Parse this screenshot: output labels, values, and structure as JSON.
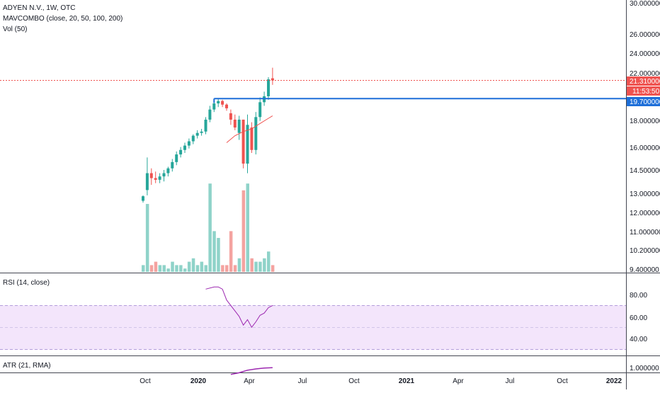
{
  "legend": {
    "symbol": "ADYEN N.V., 1W, OTC",
    "study_ma": "MAVCOMBO (close, 20, 50, 100, 200)",
    "study_vol": "Vol (50)",
    "study_rsi": "RSI (14, close)",
    "study_atr": "ATR (21, RMA)"
  },
  "price_axis": {
    "ticks": [
      "30.000000",
      "26.000000",
      "24.000000",
      "22.000000",
      "18.000000",
      "16.000000",
      "14.500000",
      "13.000000",
      "12.000000",
      "11.000000",
      "10.200000",
      "9.400000"
    ],
    "last_price": "21.310000",
    "countdown": "11:53:50",
    "level": "19.700000"
  },
  "rsi_axis": {
    "ticks": [
      "80.00",
      "60.00",
      "40.00"
    ]
  },
  "atr_axis": {
    "ticks": [
      "1.000000"
    ]
  },
  "time_axis": {
    "labels": [
      "Oct",
      "2020",
      "Apr",
      "Jul",
      "Oct",
      "2021",
      "Apr",
      "Jul",
      "Oct",
      "2022"
    ]
  },
  "colors": {
    "up": "#26a69a",
    "down": "#ef5350",
    "vol_up": "#8fd3c9",
    "vol_down": "#f4a3a0",
    "level_line": "#1e6fd9",
    "last_price_tag": "#ef5350",
    "rsi_line": "#9c27b0",
    "rsi_band": "#f3e5fb",
    "ma_line": "#ef5350"
  },
  "chart_data": {
    "type": "candlestick",
    "title": "ADYEN N.V., 1W, OTC",
    "y_scale": "log",
    "candles": [
      {
        "o": 12.7,
        "h": 13.0,
        "l": 12.6,
        "c": 12.95,
        "v": 0.1
      },
      {
        "o": 13.3,
        "h": 15.3,
        "l": 13.0,
        "c": 14.3,
        "v": 1.0
      },
      {
        "o": 14.3,
        "h": 14.6,
        "l": 13.6,
        "c": 14.0,
        "v": 0.1
      },
      {
        "o": 14.0,
        "h": 14.4,
        "l": 13.7,
        "c": 13.9,
        "v": 0.15
      },
      {
        "o": 13.9,
        "h": 14.3,
        "l": 13.7,
        "c": 14.1,
        "v": 0.1
      },
      {
        "o": 14.1,
        "h": 14.5,
        "l": 13.8,
        "c": 14.3,
        "v": 0.1
      },
      {
        "o": 14.3,
        "h": 14.7,
        "l": 14.1,
        "c": 14.6,
        "v": 0.05
      },
      {
        "o": 14.6,
        "h": 15.2,
        "l": 14.4,
        "c": 15.0,
        "v": 0.15
      },
      {
        "o": 15.0,
        "h": 15.7,
        "l": 14.8,
        "c": 15.5,
        "v": 0.1
      },
      {
        "o": 15.5,
        "h": 16.0,
        "l": 15.3,
        "c": 15.8,
        "v": 0.1
      },
      {
        "o": 15.8,
        "h": 16.3,
        "l": 15.6,
        "c": 16.1,
        "v": 0.05
      },
      {
        "o": 16.1,
        "h": 16.6,
        "l": 15.9,
        "c": 16.4,
        "v": 0.15
      },
      {
        "o": 16.4,
        "h": 16.9,
        "l": 16.2,
        "c": 16.8,
        "v": 0.2
      },
      {
        "o": 16.8,
        "h": 17.2,
        "l": 16.6,
        "c": 17.0,
        "v": 0.1
      },
      {
        "o": 17.0,
        "h": 17.3,
        "l": 16.8,
        "c": 17.1,
        "v": 0.15
      },
      {
        "o": 17.1,
        "h": 18.2,
        "l": 16.9,
        "c": 18.0,
        "v": 0.1
      },
      {
        "o": 18.0,
        "h": 19.1,
        "l": 17.8,
        "c": 18.8,
        "v": 1.3
      },
      {
        "o": 18.8,
        "h": 19.7,
        "l": 18.6,
        "c": 19.3,
        "v": 0.6
      },
      {
        "o": 19.3,
        "h": 19.7,
        "l": 19.0,
        "c": 19.5,
        "v": 0.5
      },
      {
        "o": 19.5,
        "h": 19.6,
        "l": 19.0,
        "c": 19.2,
        "v": 0.1
      },
      {
        "o": 19.2,
        "h": 19.3,
        "l": 18.7,
        "c": 18.9,
        "v": 0.1
      },
      {
        "o": 18.5,
        "h": 18.8,
        "l": 17.6,
        "c": 18.0,
        "v": 0.6
      },
      {
        "o": 18.0,
        "h": 18.4,
        "l": 17.2,
        "c": 17.4,
        "v": 0.1
      },
      {
        "o": 17.0,
        "h": 18.3,
        "l": 16.5,
        "c": 18.0,
        "v": 0.2
      },
      {
        "o": 18.0,
        "h": 18.0,
        "l": 14.6,
        "c": 14.9,
        "v": 1.2
      },
      {
        "o": 14.9,
        "h": 18.4,
        "l": 14.3,
        "c": 17.6,
        "v": 1.3
      },
      {
        "o": 17.4,
        "h": 17.8,
        "l": 15.6,
        "c": 15.8,
        "v": 0.2
      },
      {
        "o": 15.8,
        "h": 18.6,
        "l": 15.5,
        "c": 18.2,
        "v": 0.15
      },
      {
        "o": 18.2,
        "h": 19.8,
        "l": 17.9,
        "c": 19.4,
        "v": 0.15
      },
      {
        "o": 19.4,
        "h": 20.3,
        "l": 19.1,
        "c": 19.9,
        "v": 0.2
      },
      {
        "o": 19.9,
        "h": 21.6,
        "l": 19.6,
        "c": 21.4,
        "v": 0.3
      },
      {
        "o": 21.5,
        "h": 22.5,
        "l": 20.9,
        "c": 21.31,
        "v": 0.1
      }
    ],
    "moving_average": [
      {
        "i": 20,
        "v": 16.3
      },
      {
        "i": 22,
        "v": 16.8
      },
      {
        "i": 24,
        "v": 17.1
      },
      {
        "i": 26,
        "v": 17.3
      },
      {
        "i": 28,
        "v": 17.7
      },
      {
        "i": 30,
        "v": 18.1
      },
      {
        "i": 31,
        "v": 18.3
      }
    ],
    "rsi": [
      {
        "i": 15,
        "v": 85
      },
      {
        "i": 17,
        "v": 87
      },
      {
        "i": 18,
        "v": 87
      },
      {
        "i": 19,
        "v": 85
      },
      {
        "i": 20,
        "v": 75
      },
      {
        "i": 21,
        "v": 70
      },
      {
        "i": 22,
        "v": 65
      },
      {
        "i": 23,
        "v": 60
      },
      {
        "i": 24,
        "v": 52
      },
      {
        "i": 25,
        "v": 57
      },
      {
        "i": 26,
        "v": 50
      },
      {
        "i": 27,
        "v": 55
      },
      {
        "i": 28,
        "v": 61
      },
      {
        "i": 29,
        "v": 63
      },
      {
        "i": 30,
        "v": 68
      },
      {
        "i": 31,
        "v": 70
      }
    ],
    "rsi_band": [
      30,
      70
    ],
    "atr": [
      {
        "i": 21,
        "v": 0.82
      },
      {
        "i": 23,
        "v": 0.86
      },
      {
        "i": 25,
        "v": 0.92
      },
      {
        "i": 27,
        "v": 0.95
      },
      {
        "i": 29,
        "v": 0.97
      },
      {
        "i": 31,
        "v": 0.98
      }
    ],
    "horizontal_level": 19.7,
    "last_price": 21.31
  }
}
